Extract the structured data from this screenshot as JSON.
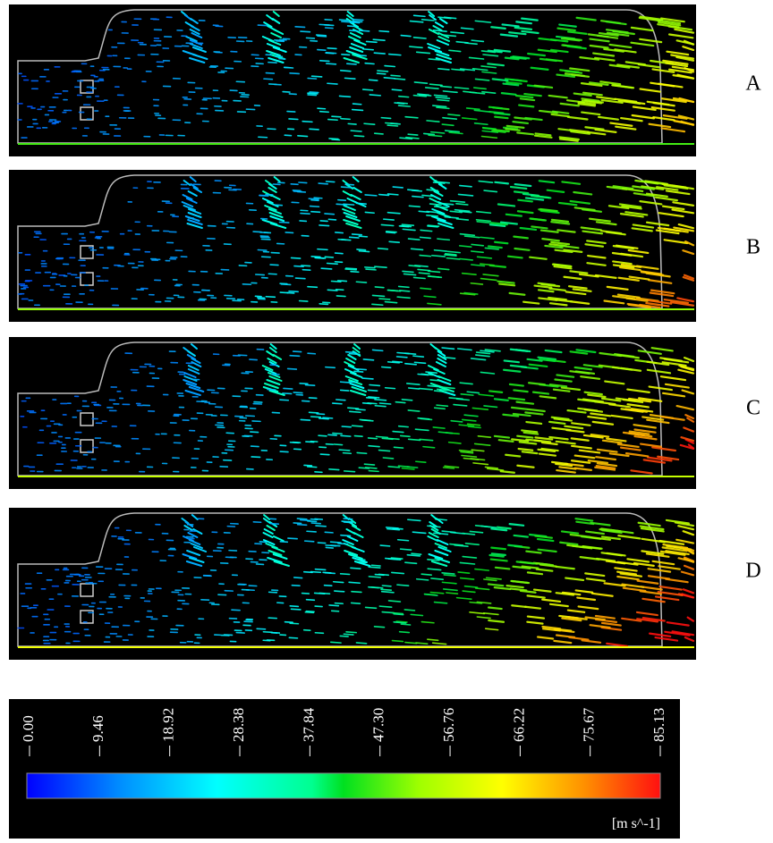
{
  "panels": [
    {
      "label": "A"
    },
    {
      "label": "B"
    },
    {
      "label": "C"
    },
    {
      "label": "D"
    }
  ],
  "colorbar": {
    "ticks": [
      {
        "value": 0,
        "label": "0.00"
      },
      {
        "value": 9.46,
        "label": "9.46"
      },
      {
        "value": 18.92,
        "label": "18.92"
      },
      {
        "value": 28.38,
        "label": "28.38"
      },
      {
        "value": 37.84,
        "label": "37.84"
      },
      {
        "value": 47.3,
        "label": "47.30"
      },
      {
        "value": 56.76,
        "label": "56.76"
      },
      {
        "value": 66.22,
        "label": "66.22"
      },
      {
        "value": 75.67,
        "label": "75.67"
      },
      {
        "value": 85.13,
        "label": "85.13"
      }
    ],
    "unit": "[m s^-1]"
  }
}
